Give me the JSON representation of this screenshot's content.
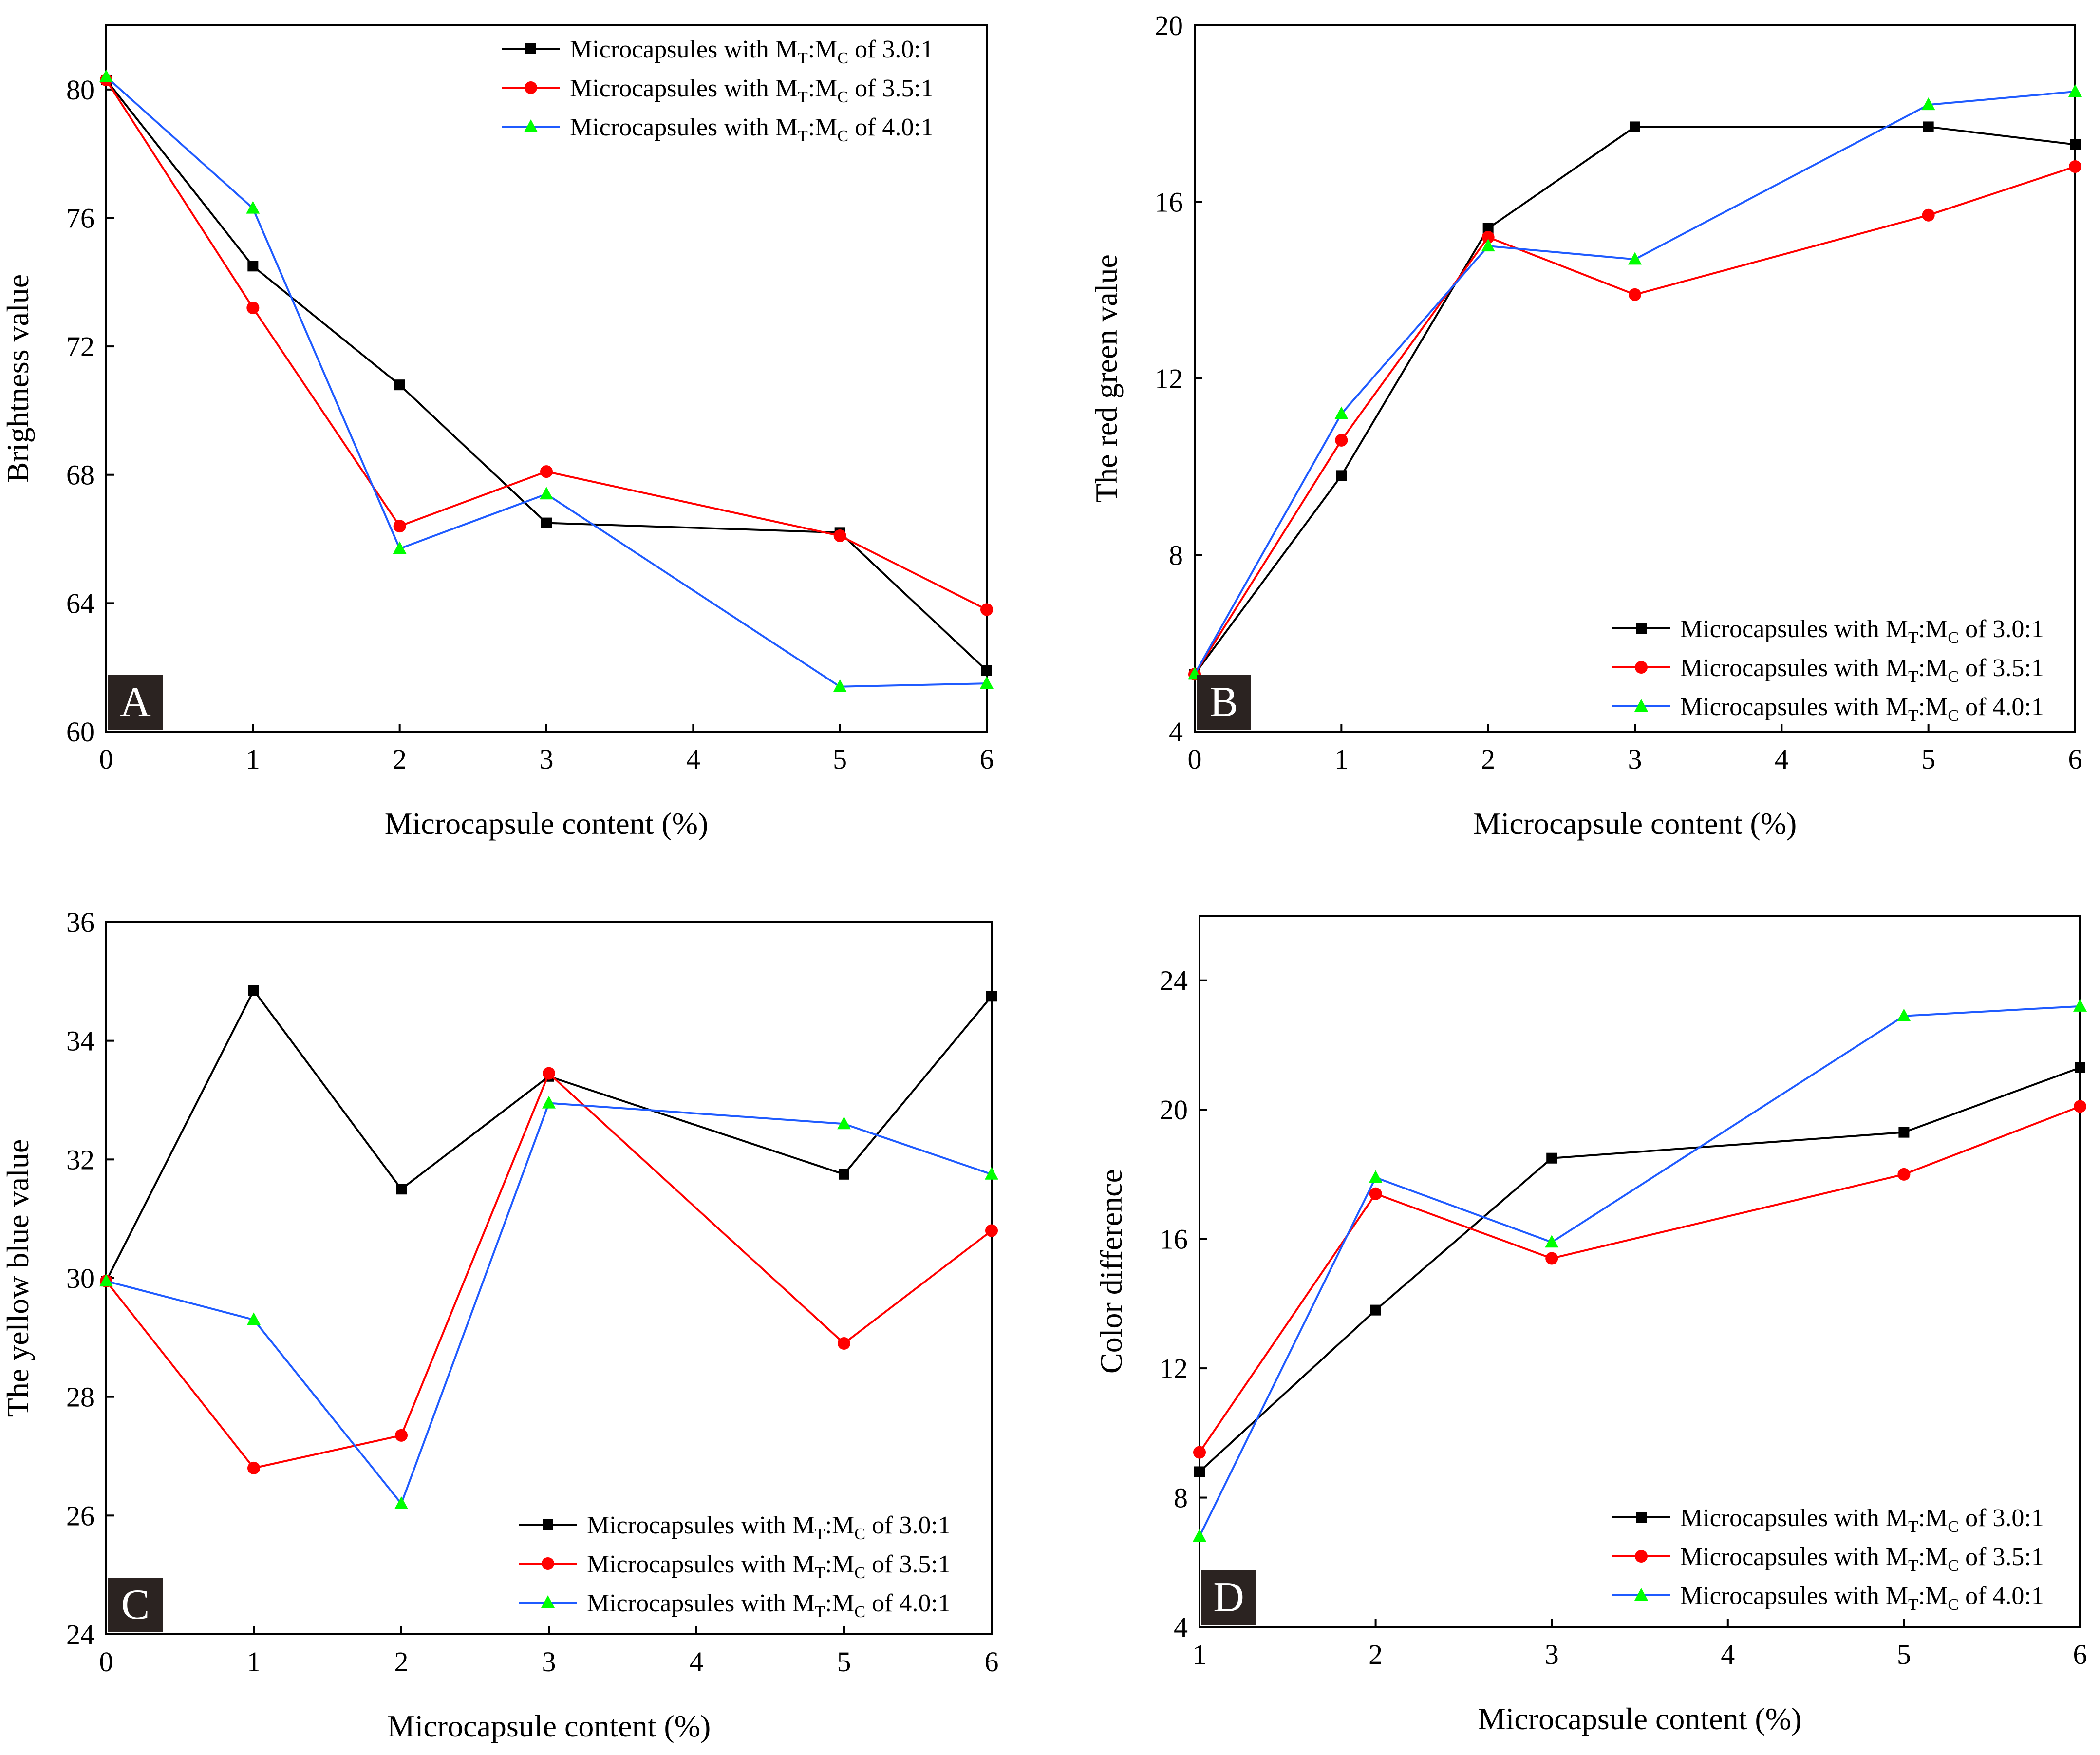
{
  "figure": {
    "series_colors": {
      "s30": "#000000",
      "s35": "#ff0000",
      "s40": "#1f5bff"
    },
    "marker_fill": {
      "s30": "#000000",
      "s35": "#ff0000",
      "s40": "#00ff00"
    },
    "legend_labels": {
      "s30": {
        "pre": "Microcapsules with M",
        "sub1": "T",
        "mid": ":M",
        "sub2": "C",
        "post": " of 3.0:1"
      },
      "s35": {
        "pre": "Microcapsules with M",
        "sub1": "T",
        "mid": ":M",
        "sub2": "C",
        "post": " of 3.5:1"
      },
      "s40": {
        "pre": "Microcapsules with M",
        "sub1": "T",
        "mid": ":M",
        "sub2": "C",
        "post": " of 4.0:1"
      }
    }
  },
  "chart_data": [
    {
      "id": "A",
      "type": "line",
      "panel_label": "A",
      "xlabel": "Microcapsule content (%)",
      "ylabel": "Brightness value",
      "xlim": [
        0,
        6
      ],
      "ylim": [
        60,
        82
      ],
      "xticks": [
        0,
        1,
        2,
        3,
        4,
        5,
        6
      ],
      "yticks": [
        60,
        64,
        68,
        72,
        76,
        80
      ],
      "legend_position": "top-right",
      "series": [
        {
          "key": "s30",
          "name": "Microcapsules with MT:MC of 3.0:1",
          "marker": "square",
          "x": [
            0,
            1,
            2,
            3,
            5,
            6
          ],
          "y": [
            80.3,
            74.5,
            70.8,
            66.5,
            66.2,
            61.9
          ]
        },
        {
          "key": "s35",
          "name": "Microcapsules with MT:MC of 3.5:1",
          "marker": "circle",
          "x": [
            0,
            1,
            2,
            3,
            5,
            6
          ],
          "y": [
            80.3,
            73.2,
            66.4,
            68.1,
            66.1,
            63.8
          ]
        },
        {
          "key": "s40",
          "name": "Microcapsules with MT:MC of 4.0:1",
          "marker": "triangle",
          "x": [
            0,
            1,
            2,
            3,
            5,
            6
          ],
          "y": [
            80.4,
            76.3,
            65.7,
            67.4,
            61.4,
            61.5
          ]
        }
      ]
    },
    {
      "id": "B",
      "type": "line",
      "panel_label": "B",
      "xlabel": "Microcapsule content (%)",
      "ylabel": "The red green value",
      "xlim": [
        0,
        6
      ],
      "ylim": [
        4,
        20
      ],
      "xticks": [
        0,
        1,
        2,
        3,
        4,
        5,
        6
      ],
      "yticks": [
        4,
        8,
        12,
        16,
        20
      ],
      "legend_position": "bottom-right",
      "series": [
        {
          "key": "s30",
          "name": "Microcapsules with MT:MC of 3.0:1",
          "marker": "square",
          "x": [
            0,
            1,
            2,
            3,
            5,
            6
          ],
          "y": [
            5.3,
            9.8,
            15.4,
            17.7,
            17.7,
            17.3
          ]
        },
        {
          "key": "s35",
          "name": "Microcapsules with MT:MC of 3.5:1",
          "marker": "circle",
          "x": [
            0,
            1,
            2,
            3,
            5,
            6
          ],
          "y": [
            5.3,
            10.6,
            15.2,
            13.9,
            15.7,
            16.8
          ]
        },
        {
          "key": "s40",
          "name": "Microcapsules with MT:MC of 4.0:1",
          "marker": "triangle",
          "x": [
            0,
            1,
            2,
            3,
            5,
            6
          ],
          "y": [
            5.3,
            11.2,
            15.0,
            14.7,
            18.2,
            18.5
          ]
        }
      ]
    },
    {
      "id": "C",
      "type": "line",
      "panel_label": "C",
      "xlabel": "Microcapsule content (%)",
      "ylabel": "The yellow blue value",
      "xlim": [
        0,
        6
      ],
      "ylim": [
        24,
        36
      ],
      "xticks": [
        0,
        1,
        2,
        3,
        4,
        5,
        6
      ],
      "yticks": [
        24,
        26,
        28,
        30,
        32,
        34,
        36
      ],
      "legend_position": "bottom-right",
      "series": [
        {
          "key": "s30",
          "name": "Microcapsules with MT:MC of 3.0:1",
          "marker": "square",
          "x": [
            0,
            1,
            2,
            3,
            5,
            6
          ],
          "y": [
            29.95,
            34.85,
            31.5,
            33.4,
            31.75,
            34.75
          ]
        },
        {
          "key": "s35",
          "name": "Microcapsules with MT:MC of 3.5:1",
          "marker": "circle",
          "x": [
            0,
            1,
            2,
            3,
            5,
            6
          ],
          "y": [
            29.95,
            26.8,
            27.35,
            33.45,
            28.9,
            30.8
          ]
        },
        {
          "key": "s40",
          "name": "Microcapsules with MT:MC of 4.0:1",
          "marker": "triangle",
          "x": [
            0,
            1,
            2,
            3,
            5,
            6
          ],
          "y": [
            29.95,
            29.3,
            26.2,
            32.95,
            32.6,
            31.75
          ]
        }
      ]
    },
    {
      "id": "D",
      "type": "line",
      "panel_label": "D",
      "xlabel": "Microcapsule content (%)",
      "ylabel": "Color difference",
      "xlim": [
        1,
        6
      ],
      "ylim": [
        4,
        26
      ],
      "xticks": [
        1,
        2,
        3,
        4,
        5,
        6
      ],
      "yticks": [
        4,
        8,
        12,
        16,
        20,
        24
      ],
      "legend_position": "bottom-right",
      "series": [
        {
          "key": "s30",
          "name": "Microcapsules with MT:MC of 3.0:1",
          "marker": "square",
          "x": [
            1,
            2,
            3,
            5,
            6
          ],
          "y": [
            8.8,
            13.8,
            18.5,
            19.3,
            21.3
          ]
        },
        {
          "key": "s35",
          "name": "Microcapsules with MT:MC of 3.5:1",
          "marker": "circle",
          "x": [
            1,
            2,
            3,
            5,
            6
          ],
          "y": [
            9.4,
            17.4,
            15.4,
            18.0,
            20.1
          ]
        },
        {
          "key": "s40",
          "name": "Microcapsules with MT:MC of 4.0:1",
          "marker": "triangle",
          "x": [
            1,
            2,
            3,
            5,
            6
          ],
          "y": [
            6.8,
            17.9,
            15.9,
            22.9,
            23.2
          ]
        }
      ]
    }
  ]
}
